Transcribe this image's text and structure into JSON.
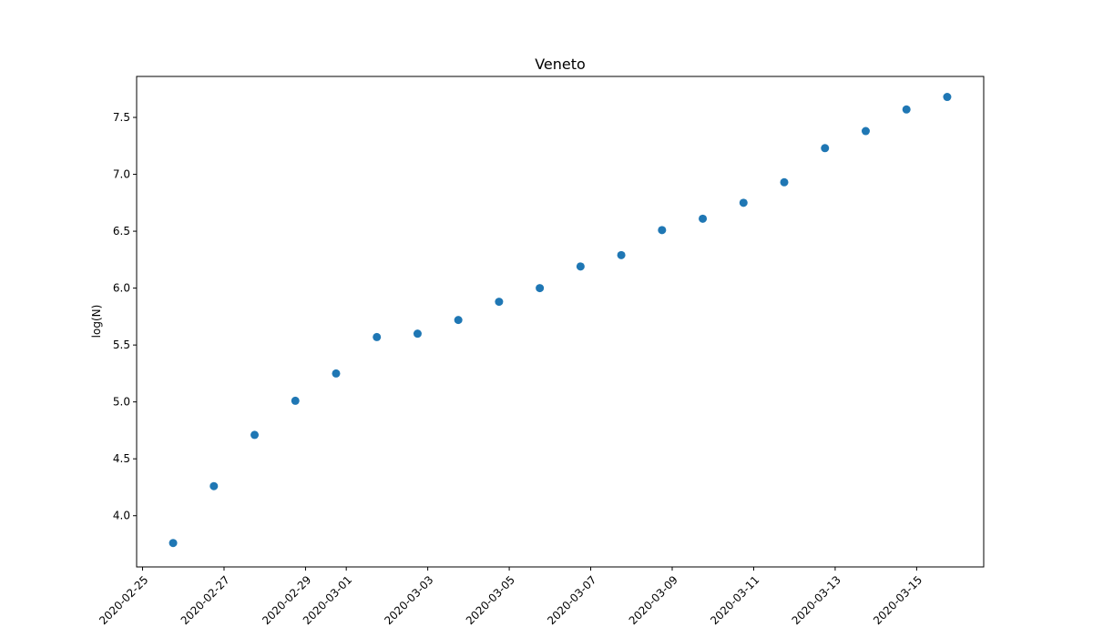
{
  "chart_data": {
    "type": "scatter",
    "title": "Veneto",
    "xlabel": "",
    "ylabel": "log(N)",
    "x": [
      "2020-02-25T18:00",
      "2020-02-26T18:00",
      "2020-02-27T18:00",
      "2020-02-28T18:00",
      "2020-02-29T18:00",
      "2020-03-01T18:00",
      "2020-03-02T18:00",
      "2020-03-03T18:00",
      "2020-03-04T18:00",
      "2020-03-05T18:00",
      "2020-03-06T18:00",
      "2020-03-07T18:00",
      "2020-03-08T18:00",
      "2020-03-09T18:00",
      "2020-03-10T18:00",
      "2020-03-11T18:00",
      "2020-03-12T18:00",
      "2020-03-13T18:00",
      "2020-03-14T18:00",
      "2020-03-15T18:00"
    ],
    "y": [
      3.76,
      4.26,
      4.71,
      5.01,
      5.25,
      5.57,
      5.6,
      5.72,
      5.88,
      6.0,
      6.19,
      6.29,
      6.51,
      6.61,
      6.75,
      6.93,
      7.23,
      7.38,
      7.57,
      7.68
    ],
    "xlim": [
      "2020-02-24T20:30",
      "2020-03-16T15:30"
    ],
    "ylim": [
      3.55,
      7.86
    ],
    "xticks": [
      "2020-02-25",
      "2020-02-27",
      "2020-02-29",
      "2020-03-01",
      "2020-03-03",
      "2020-03-05",
      "2020-03-07",
      "2020-03-09",
      "2020-03-11",
      "2020-03-13",
      "2020-03-15"
    ],
    "yticks": [
      4.0,
      4.5,
      5.0,
      5.5,
      6.0,
      6.5,
      7.0,
      7.5
    ],
    "marker_color": "#1f77b4",
    "grid": false,
    "legend": "none"
  }
}
